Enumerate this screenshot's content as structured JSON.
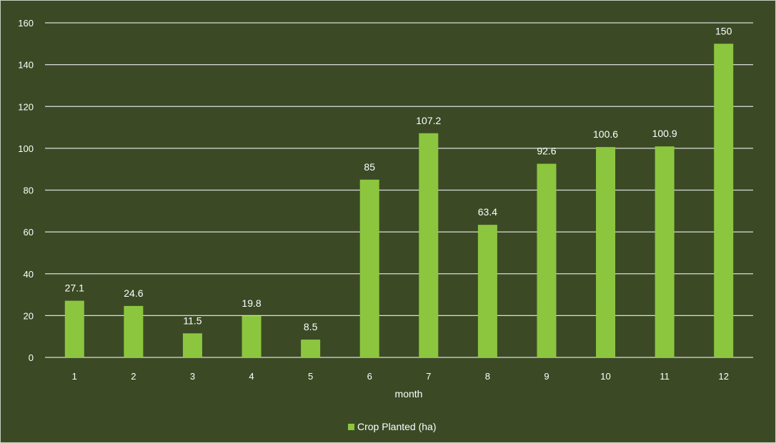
{
  "chart_data": {
    "type": "bar",
    "categories": [
      "1",
      "2",
      "3",
      "4",
      "5",
      "6",
      "7",
      "8",
      "9",
      "10",
      "11",
      "12"
    ],
    "series": [
      {
        "name": "Crop Planted (ha)",
        "values": [
          27.1,
          24.6,
          11.5,
          19.8,
          8.5,
          85,
          107.2,
          63.4,
          92.6,
          100.6,
          100.9,
          150
        ],
        "color": "#8cc63f"
      }
    ],
    "data_labels": [
      "27.1",
      "24.6",
      "11.5",
      "19.8",
      "8.5",
      "85",
      "107.2",
      "63.4",
      "92.6",
      "100.6",
      "100.9",
      "150"
    ],
    "xlabel": "month",
    "ylabel": "",
    "ylim": [
      0,
      160
    ],
    "yticks": [
      "0",
      "20",
      "40",
      "60",
      "80",
      "100",
      "120",
      "140",
      "160"
    ],
    "grid": true,
    "legend_position": "bottom",
    "colors": {
      "background": "#3b4a25",
      "gridline": "#dcdcdc",
      "text": "#ffffff"
    }
  }
}
